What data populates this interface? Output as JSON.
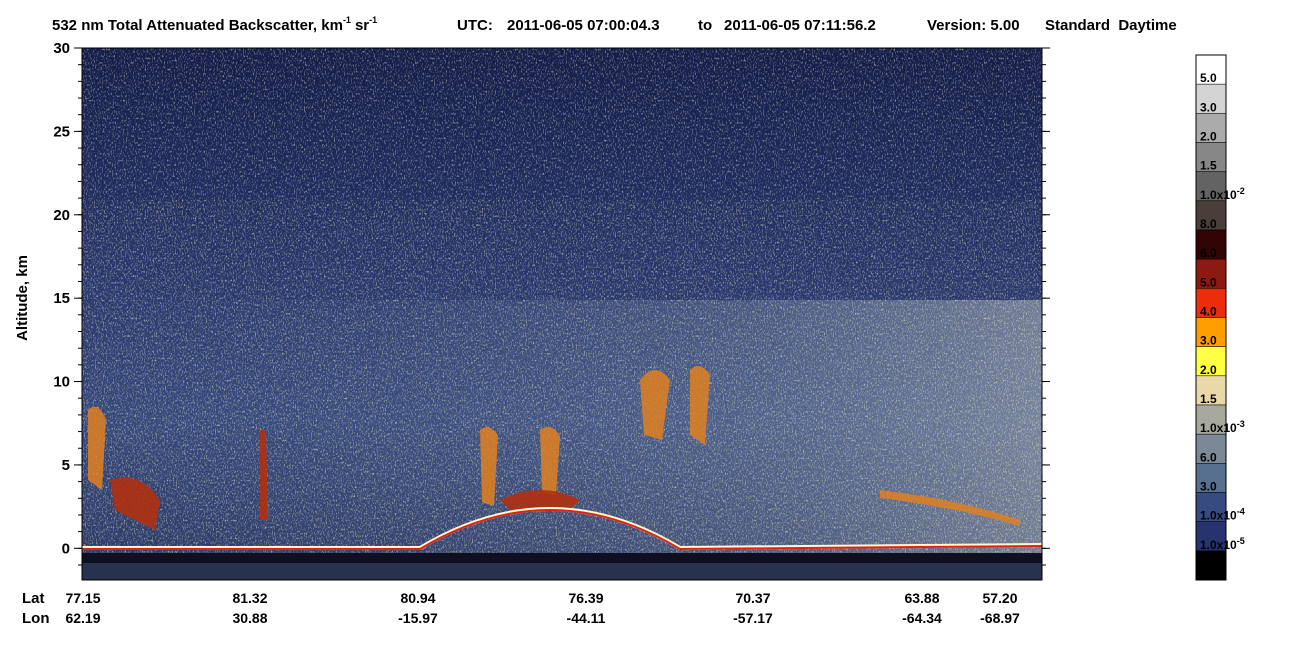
{
  "chart_data": {
    "type": "curtain",
    "title": {
      "main": "532 nm Total Attenuated Backscatter, km",
      "exp1": "-1",
      "unit2": "sr",
      "exp2": "-1",
      "utc_label": "UTC:",
      "start": "2011-06-05 07:00:04.3",
      "to": "to",
      "end": "2011-06-05 07:11:56.2",
      "version": "Version: 5.00",
      "mode": "Standard  Daytime"
    },
    "y_label": "Altitude, km",
    "ylim": [
      -1.9,
      30
    ],
    "yticks": [
      0,
      5,
      10,
      15,
      20,
      25,
      30
    ],
    "x_labels": {
      "lat_title": "Lat",
      "lon_title": "Lon",
      "lat": [
        77.15,
        81.32,
        80.94,
        76.39,
        70.37,
        63.88,
        {
          "value": 57.2,
          "label": "57.20"
        }
      ],
      "lon": [
        62.19,
        30.88,
        -15.97,
        -44.11,
        -57.17,
        -64.34,
        -68.97
      ]
    },
    "colorbar": [
      {
        "color": "#ffffff",
        "label": "5.0"
      },
      {
        "color": "#d4d4d4",
        "label": "3.0"
      },
      {
        "color": "#ababab",
        "label": "2.0"
      },
      {
        "color": "#878787",
        "label": "1.5"
      },
      {
        "color": "#636363",
        "label": "1.0x10",
        "exp": "-2"
      },
      {
        "color": "#4a3e3a",
        "label": "8.0"
      },
      {
        "color": "#320404",
        "label": "6.0"
      },
      {
        "color": "#8c1a12",
        "label": "5.0"
      },
      {
        "color": "#ea2e0c",
        "label": "4.0"
      },
      {
        "color": "#ff9c00",
        "label": "3.0"
      },
      {
        "color": "#ffff44",
        "label": "2.0"
      },
      {
        "color": "#ead9a8",
        "label": "1.5"
      },
      {
        "color": "#a7a99f",
        "label": "1.0x10",
        "exp": "-3"
      },
      {
        "color": "#7b8896",
        "label": "6.0"
      },
      {
        "color": "#587090",
        "label": "3.0"
      },
      {
        "color": "#384b80",
        "label": "1.0x10",
        "exp": "-4"
      },
      {
        "color": "#27336f",
        "label": "1.0x10",
        "exp": "-5"
      },
      {
        "color": "#000000"
      }
    ]
  }
}
